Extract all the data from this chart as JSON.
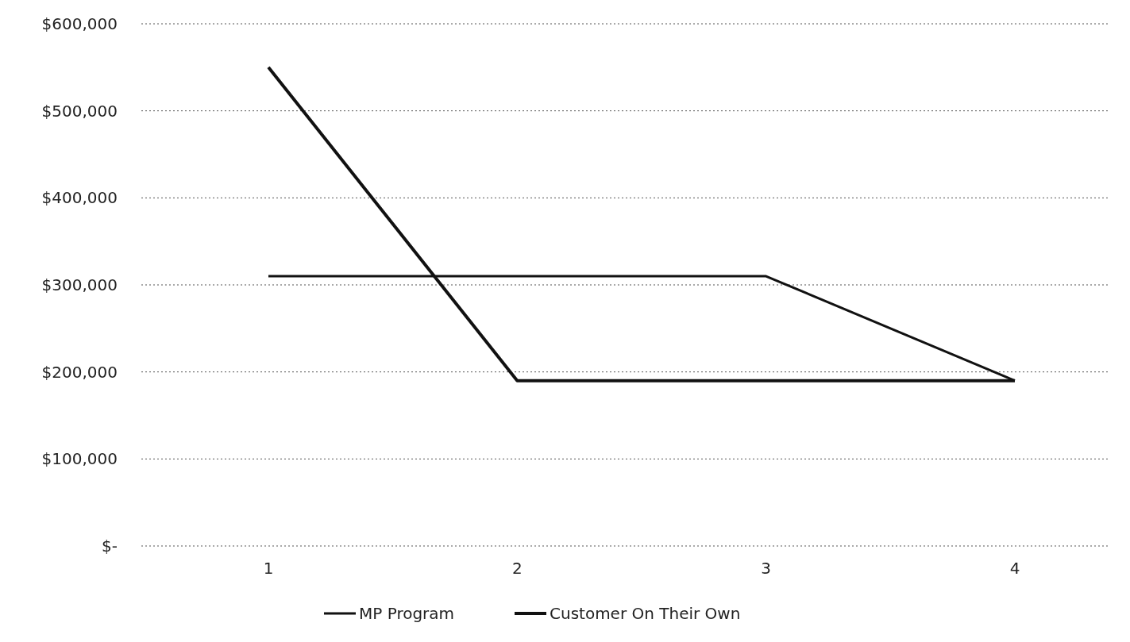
{
  "chart_data": {
    "type": "line",
    "categories": [
      "1",
      "2",
      "3",
      "4"
    ],
    "series": [
      {
        "name": "MP Program",
        "color": "#111111",
        "values": [
          310000,
          310000,
          310000,
          190000
        ]
      },
      {
        "name": "Customer On Their Own",
        "color": "#111111",
        "values": [
          550000,
          190000,
          190000,
          190000
        ]
      }
    ],
    "ylim": [
      0,
      600000
    ],
    "yticks": [
      {
        "value": 0,
        "label": "$-"
      },
      {
        "value": 100000,
        "label": "$100,000"
      },
      {
        "value": 200000,
        "label": "$200,000"
      },
      {
        "value": 300000,
        "label": "$300,000"
      },
      {
        "value": 400000,
        "label": "$400,000"
      },
      {
        "value": 500000,
        "label": "$500,000"
      },
      {
        "value": 600000,
        "label": "$600,000"
      }
    ],
    "grid": "y",
    "legend": "bottom",
    "marker": "none",
    "line_style": "solid"
  }
}
